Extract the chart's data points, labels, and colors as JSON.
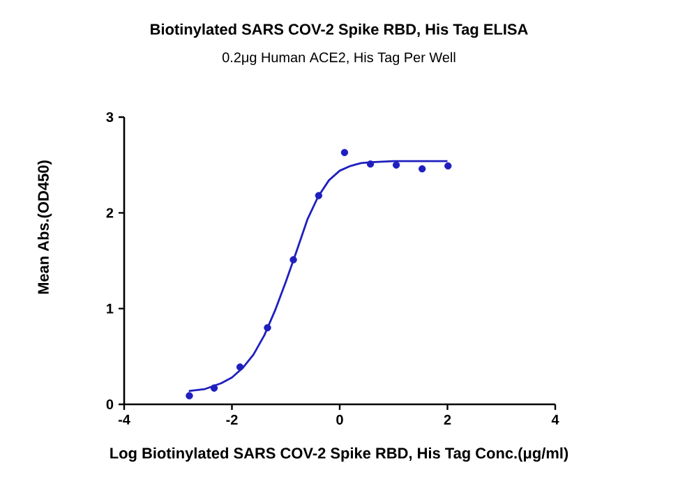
{
  "chart_data": {
    "type": "scatter",
    "title": "Biotinylated SARS COV-2 Spike RBD, His Tag ELISA",
    "subtitle": "0.2μg Human ACE2, His Tag Per Well",
    "xlabel": "Log Biotinylated SARS COV-2 Spike RBD, His Tag Conc.(μg/ml)",
    "ylabel": "Mean Abs.(OD450)",
    "xlim": [
      -4,
      4
    ],
    "ylim": [
      0,
      3
    ],
    "xticks": [
      -4,
      -2,
      0,
      2,
      4
    ],
    "yticks": [
      0,
      1,
      2,
      3
    ],
    "series": [
      {
        "marker": "circle",
        "color": "#1f1fbf",
        "x": [
          -2.79,
          -2.33,
          -1.85,
          -1.34,
          -0.86,
          -0.39,
          0.09,
          0.57,
          1.05,
          1.53,
          2.01
        ],
        "values": [
          0.09,
          0.17,
          0.39,
          0.8,
          1.51,
          2.18,
          2.63,
          2.51,
          2.5,
          2.46,
          2.49
        ]
      },
      {
        "type": "line",
        "marker": "none",
        "line_style": "solid",
        "color": "#1f1fbf",
        "x": [
          -2.8,
          -2.5,
          -2.2,
          -2.0,
          -1.8,
          -1.6,
          -1.4,
          -1.2,
          -1.0,
          -0.8,
          -0.6,
          -0.4,
          -0.2,
          0.0,
          0.2,
          0.4,
          0.6,
          1.0,
          1.5,
          2.0
        ],
        "values": [
          0.14,
          0.16,
          0.22,
          0.28,
          0.38,
          0.52,
          0.72,
          0.98,
          1.28,
          1.6,
          1.93,
          2.17,
          2.34,
          2.44,
          2.49,
          2.52,
          2.53,
          2.54,
          2.54,
          2.54
        ]
      }
    ]
  }
}
